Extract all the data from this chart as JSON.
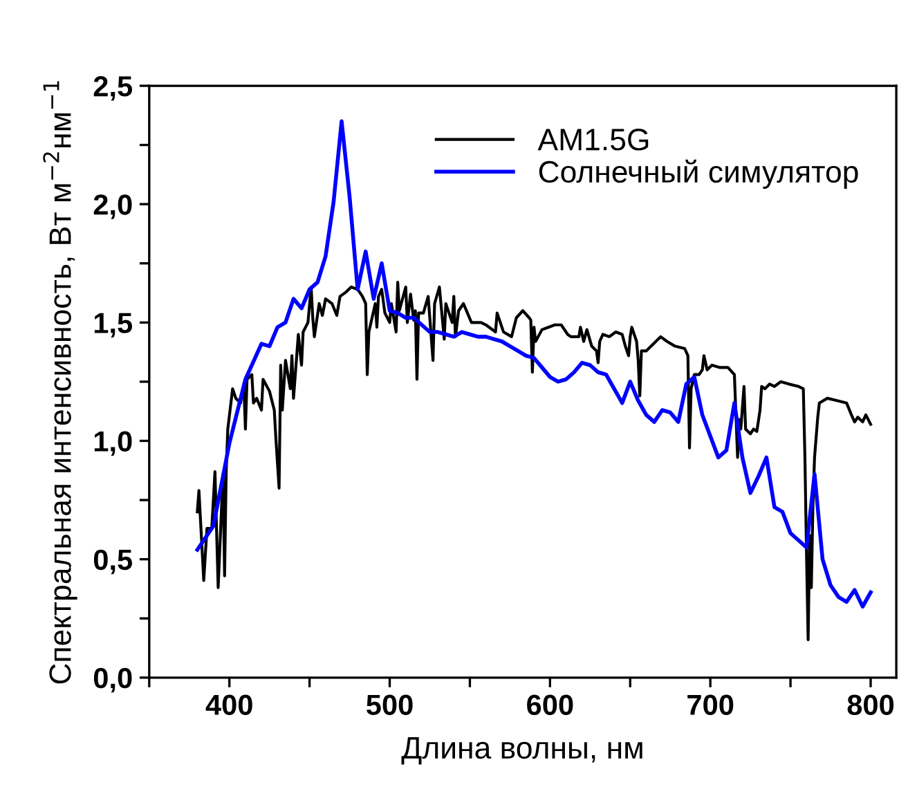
{
  "chart_data": {
    "type": "line",
    "xlabel": "Длина волны, нм",
    "ylabel": "Спектральная интенсивность, Вт м$^{−2}$нм$^{−1}$",
    "xlim": [
      350,
      816
    ],
    "ylim": [
      0,
      2.5
    ],
    "xticks": [
      {
        "value": 350,
        "label": null
      },
      400,
      {
        "value": 450,
        "label": null
      },
      500,
      {
        "value": 550,
        "label": null
      },
      600,
      {
        "value": 650,
        "label": null
      },
      700,
      {
        "value": 750,
        "label": null
      },
      800
    ],
    "yticks": [
      {
        "value": 0,
        "label": "0,0"
      },
      {
        "value": 0.25,
        "label": null
      },
      {
        "value": 0.5,
        "label": "0,5"
      },
      {
        "value": 0.75,
        "label": null
      },
      {
        "value": 1.0,
        "label": "1,0"
      },
      {
        "value": 1.25,
        "label": null
      },
      {
        "value": 1.5,
        "label": "1,5"
      },
      {
        "value": 1.75,
        "label": null
      },
      {
        "value": 2.0,
        "label": "2,0"
      },
      {
        "value": 2.25,
        "label": null
      },
      {
        "value": 2.5,
        "label": "2,5"
      }
    ],
    "grid": false,
    "legend": "top right",
    "marker": "none",
    "line_style": "solid",
    "series": [
      {
        "name": "AM1.5G",
        "color": "#000000",
        "x": [
          380,
          381,
          384,
          386,
          389,
          391,
          393,
          396,
          397,
          398,
          399,
          402,
          404,
          407,
          409,
          410,
          411,
          414,
          415,
          417,
          420,
          421,
          425,
          428,
          429,
          431,
          432,
          433,
          435,
          438,
          439,
          440,
          443,
          445,
          446,
          449,
          451,
          452,
          453,
          456,
          458,
          460,
          464,
          467,
          469,
          473,
          476,
          480,
          483,
          485,
          486,
          487,
          489,
          491,
          492,
          493,
          495,
          497,
          500,
          501,
          504,
          505,
          506,
          510,
          511,
          513,
          515,
          516,
          517,
          518,
          521,
          524,
          525,
          527,
          528,
          531,
          534,
          535,
          539,
          540,
          541,
          543,
          546,
          551,
          557,
          560,
          566,
          567,
          571,
          576,
          579,
          583,
          587,
          588,
          589,
          590,
          591,
          595,
          599,
          603,
          607,
          611,
          613,
          618,
          619,
          621,
          623,
          626,
          629,
          630,
          631,
          633,
          637,
          641,
          645,
          647,
          649,
          650,
          651,
          654,
          655,
          656,
          657,
          660,
          666,
          669,
          673,
          678,
          684,
          686,
          687,
          688,
          690,
          693,
          695,
          696,
          698,
          701,
          706,
          711,
          715,
          717,
          718,
          719,
          721,
          722,
          725,
          727,
          729,
          731,
          732,
          734,
          737,
          740,
          744,
          749,
          755,
          758,
          759,
          760,
          761,
          762,
          763,
          764,
          765,
          767,
          768,
          773,
          779,
          785,
          788,
          790,
          792,
          795,
          797,
          800
        ],
        "values": [
          0.7,
          0.79,
          0.41,
          0.63,
          0.63,
          0.87,
          0.38,
          0.86,
          0.43,
          0.87,
          1.05,
          1.22,
          1.18,
          1.16,
          1.24,
          1.05,
          1.26,
          1.28,
          1.16,
          1.18,
          1.13,
          1.26,
          1.21,
          1.13,
          1.01,
          0.8,
          1.32,
          1.13,
          1.34,
          1.22,
          1.36,
          1.18,
          1.45,
          1.32,
          1.46,
          1.5,
          1.65,
          1.52,
          1.44,
          1.58,
          1.53,
          1.6,
          1.58,
          1.53,
          1.61,
          1.63,
          1.65,
          1.64,
          1.61,
          1.58,
          1.28,
          1.46,
          1.52,
          1.58,
          1.48,
          1.61,
          1.64,
          1.54,
          1.5,
          1.58,
          1.46,
          1.67,
          1.55,
          1.65,
          1.5,
          1.62,
          1.51,
          1.55,
          1.26,
          1.54,
          1.54,
          1.61,
          1.52,
          1.34,
          1.58,
          1.65,
          1.43,
          1.58,
          1.5,
          1.61,
          1.44,
          1.55,
          1.58,
          1.5,
          1.5,
          1.49,
          1.46,
          1.54,
          1.46,
          1.44,
          1.52,
          1.55,
          1.52,
          1.51,
          1.29,
          1.48,
          1.42,
          1.47,
          1.48,
          1.49,
          1.49,
          1.45,
          1.44,
          1.44,
          1.48,
          1.42,
          1.47,
          1.4,
          1.38,
          1.33,
          1.42,
          1.45,
          1.44,
          1.46,
          1.45,
          1.4,
          1.36,
          1.44,
          1.48,
          1.42,
          1.34,
          1.19,
          1.38,
          1.38,
          1.42,
          1.44,
          1.42,
          1.4,
          1.39,
          1.36,
          0.97,
          1.22,
          1.28,
          1.28,
          1.3,
          1.36,
          1.3,
          1.32,
          1.31,
          1.31,
          1.28,
          0.93,
          1.09,
          1.05,
          1.23,
          1.05,
          1.03,
          1.05,
          1.04,
          1.13,
          1.23,
          1.22,
          1.24,
          1.23,
          1.25,
          1.24,
          1.23,
          1.22,
          0.93,
          0.52,
          0.16,
          0.6,
          0.38,
          0.73,
          0.93,
          1.1,
          1.16,
          1.18,
          1.17,
          1.16,
          1.11,
          1.08,
          1.1,
          1.08,
          1.11,
          1.07
        ]
      },
      {
        "name": "Солнечный симулятор",
        "color": "#0000ff",
        "x": [
          380,
          390,
          400,
          410,
          420,
          425,
          430,
          435,
          440,
          445,
          450,
          455,
          460,
          465,
          470,
          475,
          480,
          485,
          490,
          495,
          500,
          505,
          510,
          515,
          520,
          525,
          530,
          535,
          540,
          545,
          550,
          555,
          560,
          565,
          570,
          575,
          580,
          585,
          590,
          595,
          600,
          605,
          610,
          615,
          620,
          625,
          630,
          635,
          640,
          645,
          650,
          655,
          660,
          665,
          670,
          675,
          680,
          685,
          690,
          695,
          700,
          705,
          710,
          715,
          720,
          725,
          730,
          735,
          740,
          745,
          750,
          755,
          760,
          765,
          770,
          775,
          780,
          785,
          790,
          795,
          800
        ],
        "values": [
          0.54,
          0.64,
          0.99,
          1.26,
          1.41,
          1.4,
          1.48,
          1.5,
          1.6,
          1.56,
          1.64,
          1.67,
          1.78,
          2.01,
          2.35,
          2.03,
          1.64,
          1.8,
          1.6,
          1.75,
          1.55,
          1.54,
          1.52,
          1.52,
          1.49,
          1.46,
          1.46,
          1.45,
          1.44,
          1.46,
          1.45,
          1.44,
          1.44,
          1.43,
          1.42,
          1.4,
          1.38,
          1.36,
          1.35,
          1.31,
          1.27,
          1.25,
          1.26,
          1.29,
          1.33,
          1.32,
          1.29,
          1.28,
          1.22,
          1.16,
          1.25,
          1.17,
          1.11,
          1.08,
          1.13,
          1.12,
          1.08,
          1.24,
          1.27,
          1.11,
          1.02,
          0.93,
          0.96,
          1.16,
          0.93,
          0.78,
          0.85,
          0.93,
          0.72,
          0.7,
          0.61,
          0.58,
          0.55,
          0.86,
          0.5,
          0.39,
          0.34,
          0.32,
          0.37,
          0.3,
          0.36
        ]
      }
    ]
  }
}
